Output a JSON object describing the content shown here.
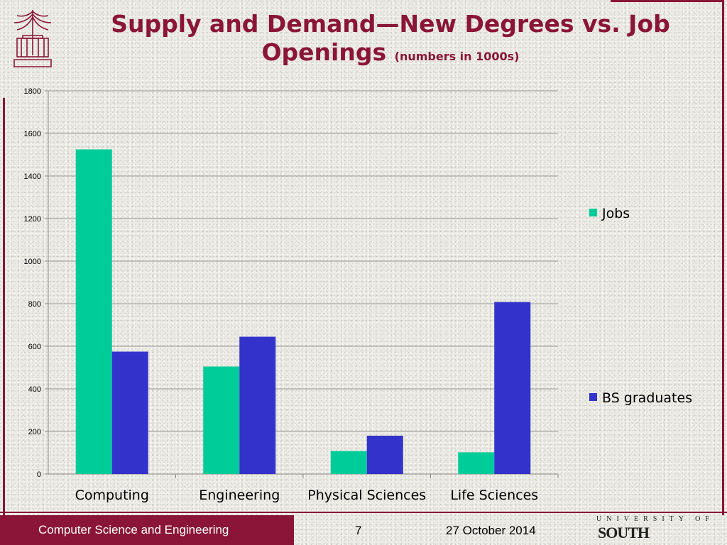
{
  "slide": {
    "title_main": "Supply and Demand—New Degrees vs. Job Openings",
    "title_sub": "(numbers in 1000s)"
  },
  "footer": {
    "department": "Computer Science and Engineering",
    "page": "7",
    "date": "27 October 2014",
    "logo_top": "UNIVERSITY OF",
    "logo_bottom": "SOUTH CAROLINA."
  },
  "colors": {
    "brand": "#8a1538",
    "jobs": "#00cc99",
    "graduates": "#3333cc"
  },
  "chart_data": {
    "type": "bar",
    "categories": [
      "Computing",
      "Engineering",
      "Physical Sciences",
      "Life Sciences"
    ],
    "series": [
      {
        "name": "Jobs",
        "values": [
          1525,
          505,
          108,
          102
        ]
      },
      {
        "name": "BS graduates",
        "values": [
          575,
          645,
          180,
          808
        ]
      }
    ],
    "ylim": [
      0,
      1800
    ],
    "yticks": [
      0,
      200,
      400,
      600,
      800,
      1000,
      1200,
      1400,
      1600,
      1800
    ],
    "grid": true,
    "legend": "right"
  }
}
